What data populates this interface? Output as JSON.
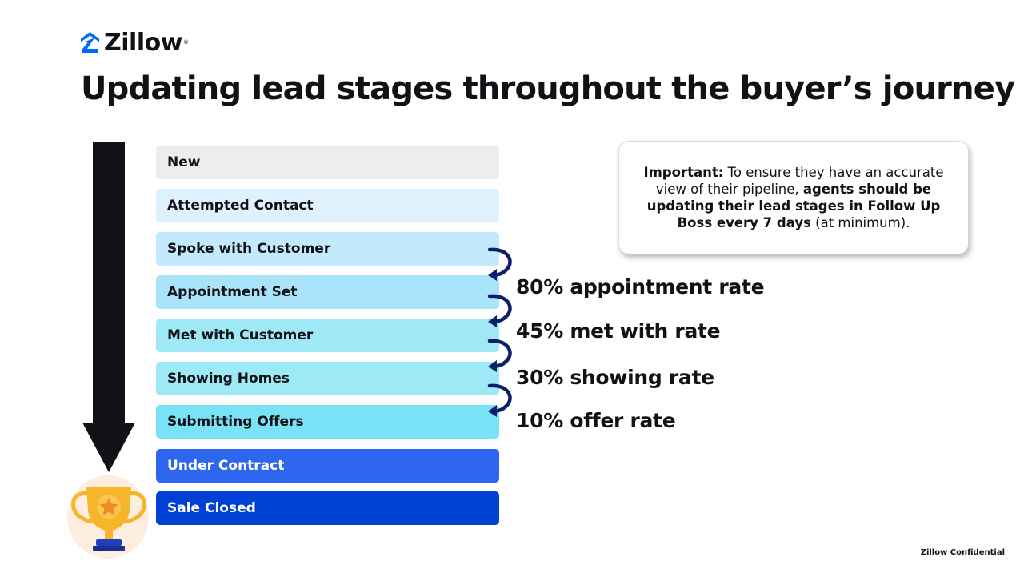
{
  "brand": {
    "name": "Zillow",
    "color": "#006aff"
  },
  "title": "Updating lead stages throughout the buyer’s journey",
  "stages": [
    {
      "label": "New",
      "color": "#ededef"
    },
    {
      "label": "Attempted Contact",
      "color": "#dff1fd"
    },
    {
      "label": "Spoke with Customer",
      "color": "#c3e9fc"
    },
    {
      "label": "Appointment Set",
      "color": "#aae4fb"
    },
    {
      "label": "Met with Customer",
      "color": "#9fe9f6"
    },
    {
      "label": "Showing Homes",
      "color": "#9deaf6"
    },
    {
      "label": "Submitting Offers",
      "color": "#7ae2f6"
    },
    {
      "label": "Under Contract",
      "color": "#2f66ef"
    },
    {
      "label": "Sale Closed",
      "color": "#0040d5"
    }
  ],
  "rates": [
    "80% appointment rate",
    "45% met with rate",
    "30% showing rate",
    "10% offer rate"
  ],
  "callout": {
    "lead": "Important:",
    "text1": " To ensure they have an accurate view of their pipeline, ",
    "emphasis": "agents should be updating their lead stages in Follow Up Boss every 7 days",
    "text2": " (at minimum)."
  },
  "footer": "Zillow Confidential",
  "icons": {
    "flow_arrow": "down-arrow-icon",
    "goal": "trophy-star-icon",
    "transition": "curved-arrow-icon"
  },
  "colors": {
    "arrow": "#111116",
    "trophy": "#f7b52c",
    "trophy_star": "#f08a24",
    "trophy_base": "#1f3fbf",
    "curve_arrow": "#0b1f6b"
  }
}
